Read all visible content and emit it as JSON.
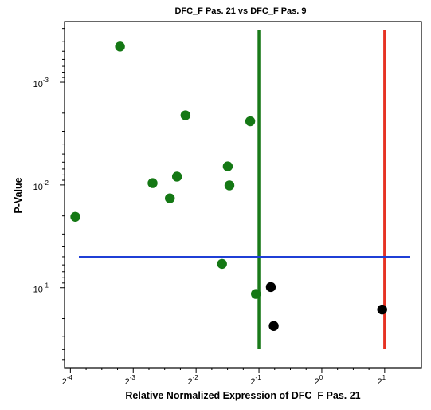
{
  "chart_data": {
    "type": "scatter",
    "title": "DFC_F Pas. 21 vs DFC_F Pas. 9",
    "xlabel": "Relative Normalized Expression of DFC_F Pas. 21",
    "ylabel": "P-Value",
    "x_scale": "log2",
    "y_scale": "log10, reversed (small p-values at top)",
    "xlim": [
      0.05859,
      3.0
    ],
    "ylim_top": 0.000257,
    "ylim_bottom": 0.6,
    "x_ticks": [
      {
        "base": "2",
        "exp": "-4",
        "value": 0.0625
      },
      {
        "base": "2",
        "exp": "-3",
        "value": 0.125
      },
      {
        "base": "2",
        "exp": "-2",
        "value": 0.25
      },
      {
        "base": "2",
        "exp": "-1",
        "value": 0.5
      },
      {
        "base": "2",
        "exp": "0",
        "value": 1
      },
      {
        "base": "2",
        "exp": "1",
        "value": 2
      }
    ],
    "y_ticks": [
      {
        "base": "10",
        "exp": "-3",
        "value": 0.001
      },
      {
        "base": "10",
        "exp": "-2",
        "value": 0.01
      },
      {
        "base": "10",
        "exp": "-1",
        "value": 0.1
      }
    ],
    "thresholds": {
      "vertical": [
        {
          "x": 0.5,
          "color": "#1a7a1a"
        },
        {
          "x": 2.0,
          "color": "#e63223"
        }
      ],
      "horizontal": [
        {
          "y": 0.05,
          "color": "#1f3fd6"
        }
      ]
    },
    "grid": false,
    "series": [
      {
        "color": "#147814",
        "points": [
          {
            "x": 0.108,
            "y": 0.00045
          },
          {
            "x": 0.066,
            "y": 0.0204
          },
          {
            "x": 0.2224,
            "y": 0.0021
          },
          {
            "x": 0.2025,
            "y": 0.0083
          },
          {
            "x": 0.1547,
            "y": 0.0096
          },
          {
            "x": 0.3545,
            "y": 0.0066
          },
          {
            "x": 0.3611,
            "y": 0.0101
          },
          {
            "x": 0.1872,
            "y": 0.0135
          },
          {
            "x": 0.4541,
            "y": 0.0024
          },
          {
            "x": 0.3328,
            "y": 0.0587
          },
          {
            "x": 0.4833,
            "y": 0.115
          }
        ]
      },
      {
        "color": "#000000",
        "points": [
          {
            "x": 0.5699,
            "y": 0.0985
          },
          {
            "x": 0.5885,
            "y": 0.236
          },
          {
            "x": 1.9456,
            "y": 0.163
          }
        ]
      }
    ]
  }
}
